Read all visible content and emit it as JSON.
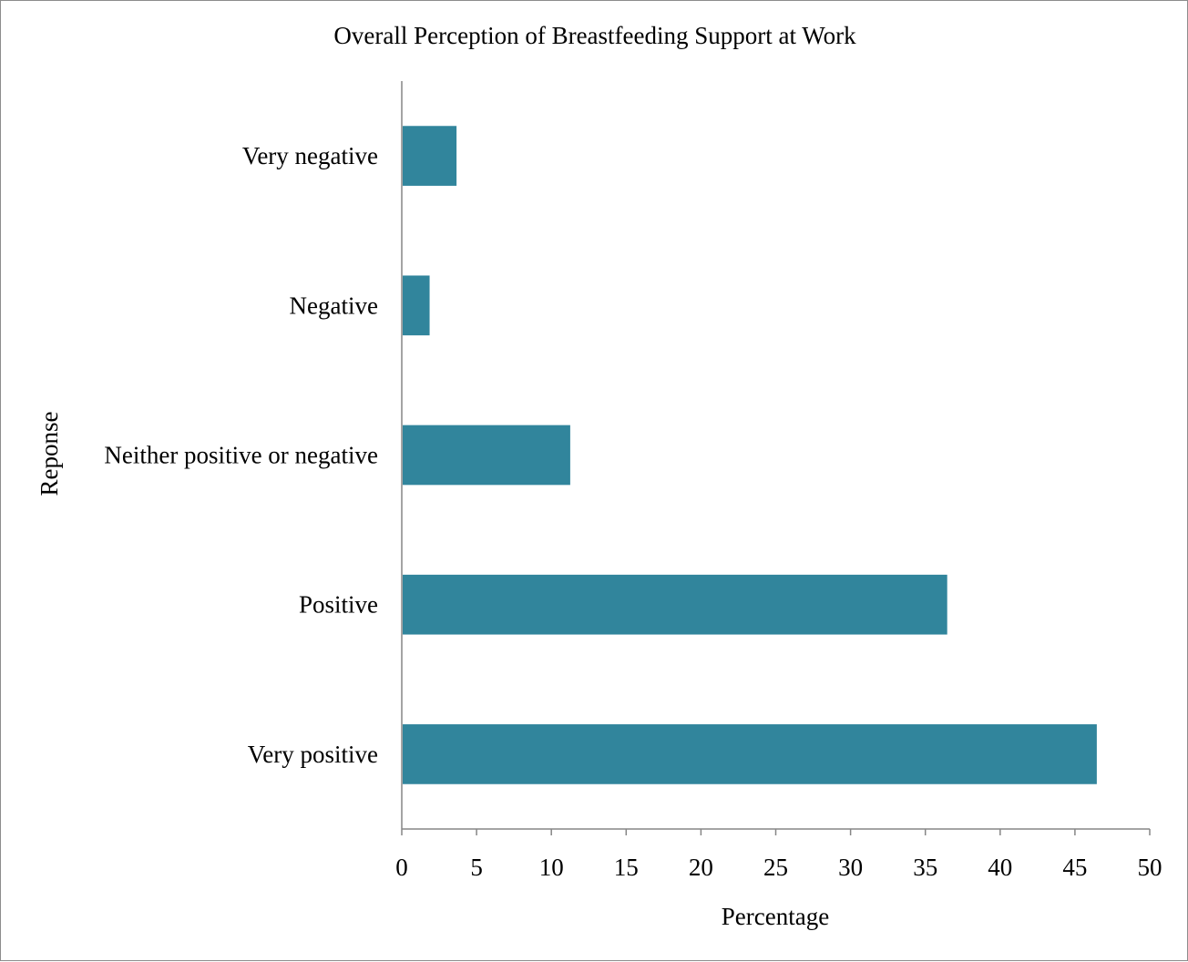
{
  "chart_data": {
    "type": "bar",
    "orientation": "horizontal",
    "title": "Overall Perception of Breastfeeding Support at Work",
    "xlabel": "Percentage",
    "ylabel": "Reponse",
    "categories": [
      "Very negative",
      "Negative",
      "Neither positive or negative",
      "Positive",
      "Very positive"
    ],
    "values": [
      3.6,
      1.8,
      11.2,
      36.4,
      46.4
    ],
    "xlim": [
      0,
      50
    ],
    "xticks": [
      0,
      5,
      10,
      15,
      20,
      25,
      30,
      35,
      40,
      45,
      50
    ],
    "grid": false,
    "legend": "none",
    "bar_color": "#31859c",
    "axis_color": "#868686"
  }
}
